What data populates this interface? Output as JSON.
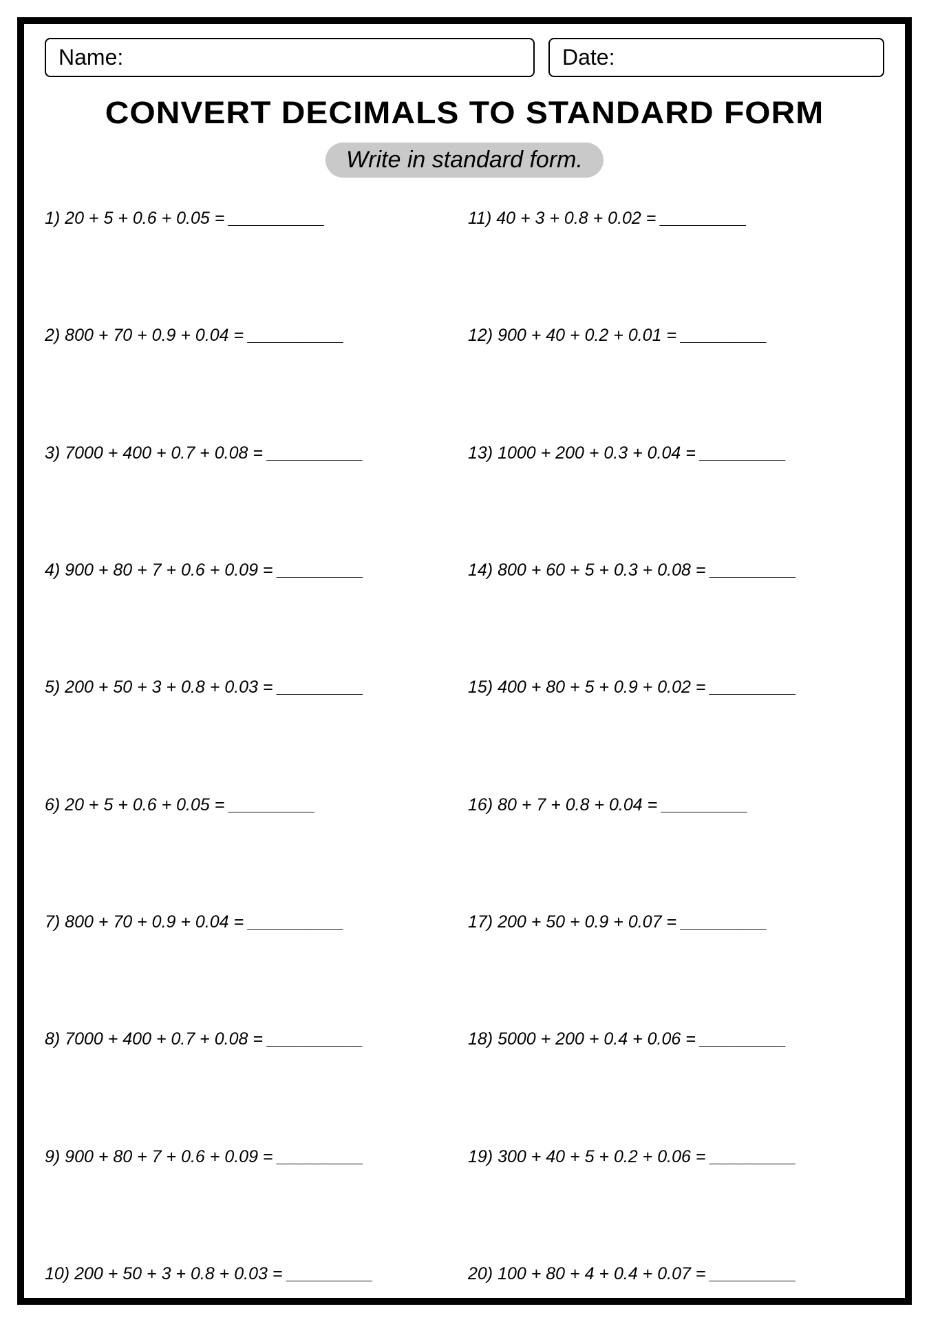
{
  "header": {
    "name_label": "Name:",
    "date_label": "Date:"
  },
  "title": "CONVERT DECIMALS TO STANDARD FORM",
  "subtitle": "Write in standard form.",
  "problems_left": [
    "1) 20 + 5 + 0.6 + 0.05 = __________",
    "2) 800 + 70 + 0.9 + 0.04 = __________",
    "3) 7000 + 400 + 0.7 + 0.08 = __________",
    "4) 900 + 80 + 7 + 0.6 + 0.09 = _________",
    "5) 200 + 50 + 3 + 0.8 + 0.03 = _________",
    "6) 20 + 5 + 0.6 + 0.05 = _________",
    "7) 800 + 70 + 0.9 + 0.04 = __________",
    "8) 7000 + 400 + 0.7 + 0.08 = __________",
    "9) 900 + 80 + 7 + 0.6 + 0.09 = _________",
    "10) 200 + 50 + 3 + 0.8 + 0.03 = _________"
  ],
  "problems_right": [
    "11) 40 + 3 + 0.8 + 0.02 = _________",
    "12) 900 + 40 + 0.2 + 0.01 = _________",
    "13) 1000 + 200 + 0.3 + 0.04 = _________",
    "14) 800 + 60 + 5 + 0.3 + 0.08 = _________",
    "15) 400 + 80 + 5 + 0.9 + 0.02 = _________",
    "16) 80 + 7 + 0.8 + 0.04 = _________",
    "17) 200 + 50 + 0.9 + 0.07 = _________",
    "18) 5000 + 200 + 0.4 + 0.06 = _________",
    "19) 300 + 40 + 5 + 0.2 + 0.06 = _________",
    "20) 100 + 80 + 4 + 0.4 + 0.07 = _________"
  ],
  "styling": {
    "page_border_color": "#000000",
    "page_border_width": 10,
    "background_color": "#ffffff",
    "subtitle_bg": "#c9c9c9",
    "title_fontsize": 48,
    "subtitle_fontsize": 34,
    "problem_fontsize": 25,
    "header_fontsize": 32,
    "font_family_title": "Arial Black",
    "font_family_body": "Comic Sans MS"
  }
}
